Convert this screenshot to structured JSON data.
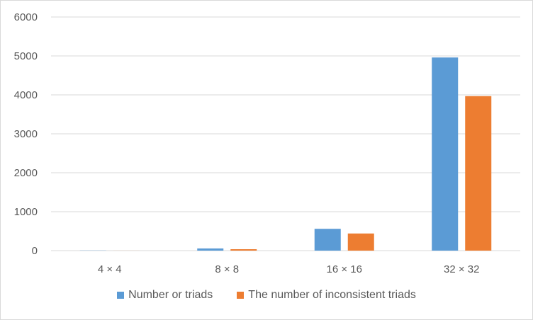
{
  "chart_data": {
    "type": "bar",
    "categories": [
      "4 × 4",
      "8 × 8",
      "16 × 16",
      "32 × 32"
    ],
    "series": [
      {
        "name": "Number or triads",
        "color": "#5B9BD5",
        "values": [
          4,
          56,
          560,
          4960
        ]
      },
      {
        "name": "The number of inconsistent triads",
        "color": "#ED7D31",
        "values": [
          1,
          36,
          440,
          3968
        ]
      }
    ],
    "ylim": [
      0,
      6000
    ],
    "yticks": [
      0,
      1000,
      2000,
      3000,
      4000,
      5000,
      6000
    ],
    "grid": true,
    "legend_position": "bottom"
  }
}
